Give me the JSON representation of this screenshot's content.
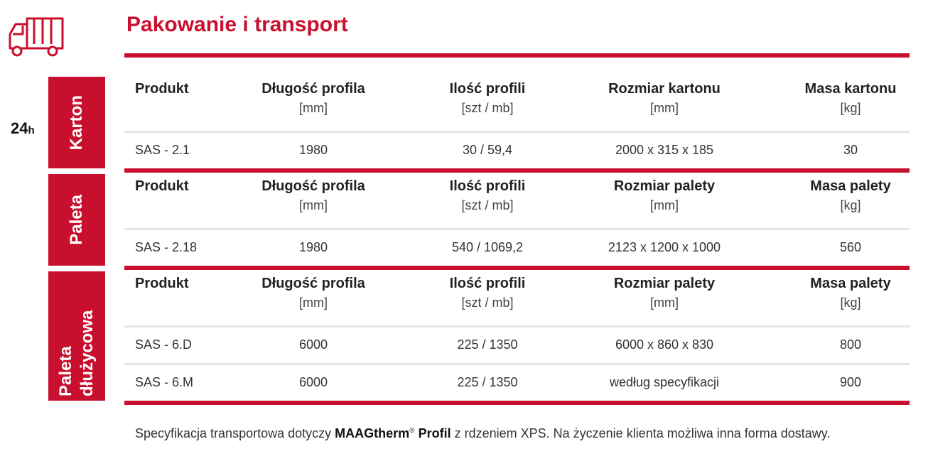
{
  "header": {
    "title": "Pakowanie i transport"
  },
  "side_note": {
    "number": "24",
    "unit": "h"
  },
  "sections": [
    {
      "label": "Karton",
      "headers": [
        {
          "name": "Produkt",
          "unit": null
        },
        {
          "name": "Długość profila",
          "unit": "[mm]"
        },
        {
          "name": "Ilość profili",
          "unit": "[szt / mb]"
        },
        {
          "name": "Rozmiar kartonu",
          "unit": "[mm]"
        },
        {
          "name": "Masa kartonu",
          "unit": "[kg]"
        }
      ],
      "rows": [
        [
          "SAS - 2.1",
          "1980",
          "30 / 59,4",
          "2000 x 315 x 185",
          "30"
        ]
      ]
    },
    {
      "label": "Paleta",
      "headers": [
        {
          "name": "Produkt",
          "unit": null
        },
        {
          "name": "Długość profila",
          "unit": "[mm]"
        },
        {
          "name": "Ilość profili",
          "unit": "[szt / mb]"
        },
        {
          "name": "Rozmiar palety",
          "unit": "[mm]"
        },
        {
          "name": "Masa palety",
          "unit": "[kg]"
        }
      ],
      "rows": [
        [
          "SAS - 2.18",
          "1980",
          "540 / 1069,2",
          "2123 x 1200 x 1000",
          "560"
        ]
      ]
    },
    {
      "label": "Paleta dłużycowa",
      "headers": [
        {
          "name": "Produkt",
          "unit": null
        },
        {
          "name": "Długość profila",
          "unit": "[mm]"
        },
        {
          "name": "Ilość profili",
          "unit": "[szt / mb]"
        },
        {
          "name": "Rozmiar palety",
          "unit": "[mm]"
        },
        {
          "name": "Masa palety",
          "unit": "[kg]"
        }
      ],
      "rows": [
        [
          "SAS - 6.D",
          "6000",
          "225 / 1350",
          "6000 x 860 x 830",
          "800"
        ],
        [
          "SAS - 6.M",
          "6000",
          "225 / 1350",
          "według specyfikacji",
          "900"
        ]
      ]
    }
  ],
  "footer": {
    "text_before": "Specyfikacja transportowa dotyczy",
    "brand": "MAAGtherm",
    "mark": "®",
    "product": "Profil",
    "text_after": "z rdzeniem XPS. Na życzenie klienta możliwa inna forma dostawy."
  }
}
